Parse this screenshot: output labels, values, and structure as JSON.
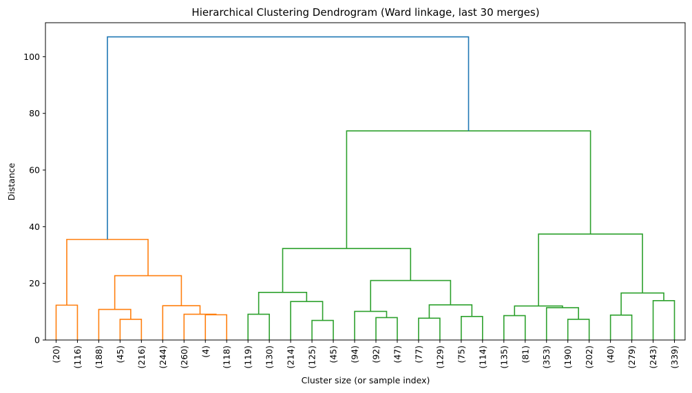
{
  "chart_data": {
    "type": "dendrogram",
    "title": "Hierarchical Clustering Dendrogram (Ward linkage, last 30 merges)",
    "xlabel": "Cluster size (or sample index)",
    "ylabel": "Distance",
    "ylim": [
      0,
      112
    ],
    "yticks": [
      0,
      20,
      40,
      60,
      80,
      100
    ],
    "grid": false,
    "colors": {
      "c1": "#ff7f0e",
      "c2": "#2ca02c",
      "top": "#1f77b4"
    },
    "leaves": [
      "(20)",
      "(116)",
      "(188)",
      "(45)",
      "(216)",
      "(244)",
      "(260)",
      "(4)",
      "(118)",
      "(119)",
      "(130)",
      "(214)",
      "(125)",
      "(45)",
      "(94)",
      "(92)",
      "(47)",
      "(77)",
      "(129)",
      "(75)",
      "(114)",
      "(135)",
      "(81)",
      "(353)",
      "(190)",
      "(202)",
      "(40)",
      "(279)",
      "(243)",
      "(339)"
    ],
    "links": [
      {
        "left": 0,
        "right": 1,
        "height": 12.3,
        "color": "c1"
      },
      {
        "left": 3,
        "right": 4,
        "height": 7.3,
        "color": "c1"
      },
      {
        "left": 2,
        "right": 31,
        "height": 10.8,
        "color": "c1"
      },
      {
        "left": 7,
        "right": 8,
        "height": 8.9,
        "color": "c1"
      },
      {
        "left": 6,
        "right": 33,
        "height": 9.1,
        "color": "c1"
      },
      {
        "left": 5,
        "right": 34,
        "height": 12.1,
        "color": "c1"
      },
      {
        "left": 32,
        "right": 35,
        "height": 22.7,
        "color": "c1"
      },
      {
        "left": 30,
        "right": 36,
        "height": 35.5,
        "color": "c1"
      },
      {
        "left": 9,
        "right": 10,
        "height": 9.1,
        "color": "c2"
      },
      {
        "left": 12,
        "right": 13,
        "height": 6.9,
        "color": "c2"
      },
      {
        "left": 11,
        "right": 39,
        "height": 13.6,
        "color": "c2"
      },
      {
        "left": 38,
        "right": 40,
        "height": 16.8,
        "color": "c2"
      },
      {
        "left": 15,
        "right": 16,
        "height": 7.9,
        "color": "c2"
      },
      {
        "left": 14,
        "right": 42,
        "height": 10.1,
        "color": "c2"
      },
      {
        "left": 17,
        "right": 18,
        "height": 7.7,
        "color": "c2"
      },
      {
        "left": 19,
        "right": 20,
        "height": 8.3,
        "color": "c2"
      },
      {
        "left": 44,
        "right": 45,
        "height": 12.4,
        "color": "c2"
      },
      {
        "left": 43,
        "right": 46,
        "height": 21.0,
        "color": "c2"
      },
      {
        "left": 41,
        "right": 47,
        "height": 32.3,
        "color": "c2"
      },
      {
        "left": 21,
        "right": 22,
        "height": 8.6,
        "color": "c2"
      },
      {
        "left": 24,
        "right": 25,
        "height": 7.3,
        "color": "c2"
      },
      {
        "left": 23,
        "right": 50,
        "height": 11.4,
        "color": "c2"
      },
      {
        "left": 49,
        "right": 51,
        "height": 12.0,
        "color": "c2"
      },
      {
        "left": 26,
        "right": 27,
        "height": 8.8,
        "color": "c2"
      },
      {
        "left": 28,
        "right": 29,
        "height": 13.9,
        "color": "c2"
      },
      {
        "left": 53,
        "right": 54,
        "height": 16.6,
        "color": "c2"
      },
      {
        "left": 52,
        "right": 55,
        "height": 37.4,
        "color": "c2"
      },
      {
        "left": 48,
        "right": 56,
        "height": 73.8,
        "color": "c2"
      },
      {
        "left": 37,
        "right": 57,
        "height": 107.0,
        "color": "top"
      }
    ]
  }
}
